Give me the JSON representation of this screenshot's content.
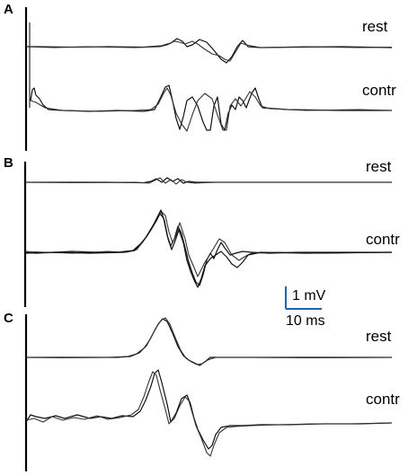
{
  "chart_data": {
    "type": "line",
    "panels": [
      {
        "letter": "A",
        "traces": [
          {
            "label": "rest"
          },
          {
            "label": "contr"
          }
        ]
      },
      {
        "letter": "B",
        "traces": [
          {
            "label": "rest"
          },
          {
            "label": "contr"
          }
        ]
      },
      {
        "letter": "C",
        "traces": [
          {
            "label": "rest"
          },
          {
            "label": "contr"
          }
        ]
      }
    ],
    "scale_bar": {
      "amplitude_label": "1 mV",
      "time_label": "10 ms",
      "color": "#1f5fbf"
    }
  }
}
